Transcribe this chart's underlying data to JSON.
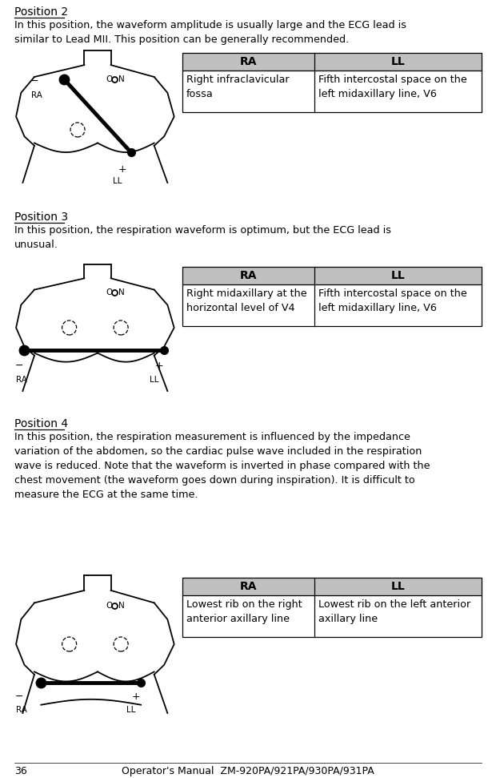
{
  "bg_color": "#ffffff",
  "text_color": "#000000",
  "page_number": "36",
  "footer_text": "Operator's Manual  ZM-920PA/921PA/930PA/931PA",
  "position2_title": "Position 2",
  "position2_body": "In this position, the waveform amplitude is usually large and the ECG lead is\nsimilar to Lead MII. This position can be generally recommended.",
  "position3_title": "Position 3",
  "position3_body": "In this position, the respiration waveform is optimum, but the ECG lead is\nunusual.",
  "position4_title": "Position 4",
  "position4_body": "In this position, the respiration measurement is influenced by the impedance\nvariation of the abdomen, so the cardiac pulse wave included in the respiration\nwave is reduced. Note that the waveform is inverted in phase compared with the\nchest movement (the waveform goes down during inspiration). It is difficult to\nmeasure the ECG at the same time.",
  "pos2_ra": "Right infraclavicular\nfossa",
  "pos2_ll": "Fifth intercostal space on the\nleft midaxillary line, V6",
  "pos3_ra": "Right midaxillary at the\nhorizontal level of V4",
  "pos3_ll": "Fifth intercostal space on the\nleft midaxillary line, V6",
  "pos4_ra": "Lowest rib on the right\nanterior axillary line",
  "pos4_ll": "Lowest rib on the left anterior\naxillary line",
  "body_fontsize": 9.2,
  "title_fontsize": 10.0,
  "table_header_fontsize": 10.0,
  "table_body_fontsize": 9.2,
  "footer_fontsize": 9.0,
  "ml": 18,
  "mr": 602
}
